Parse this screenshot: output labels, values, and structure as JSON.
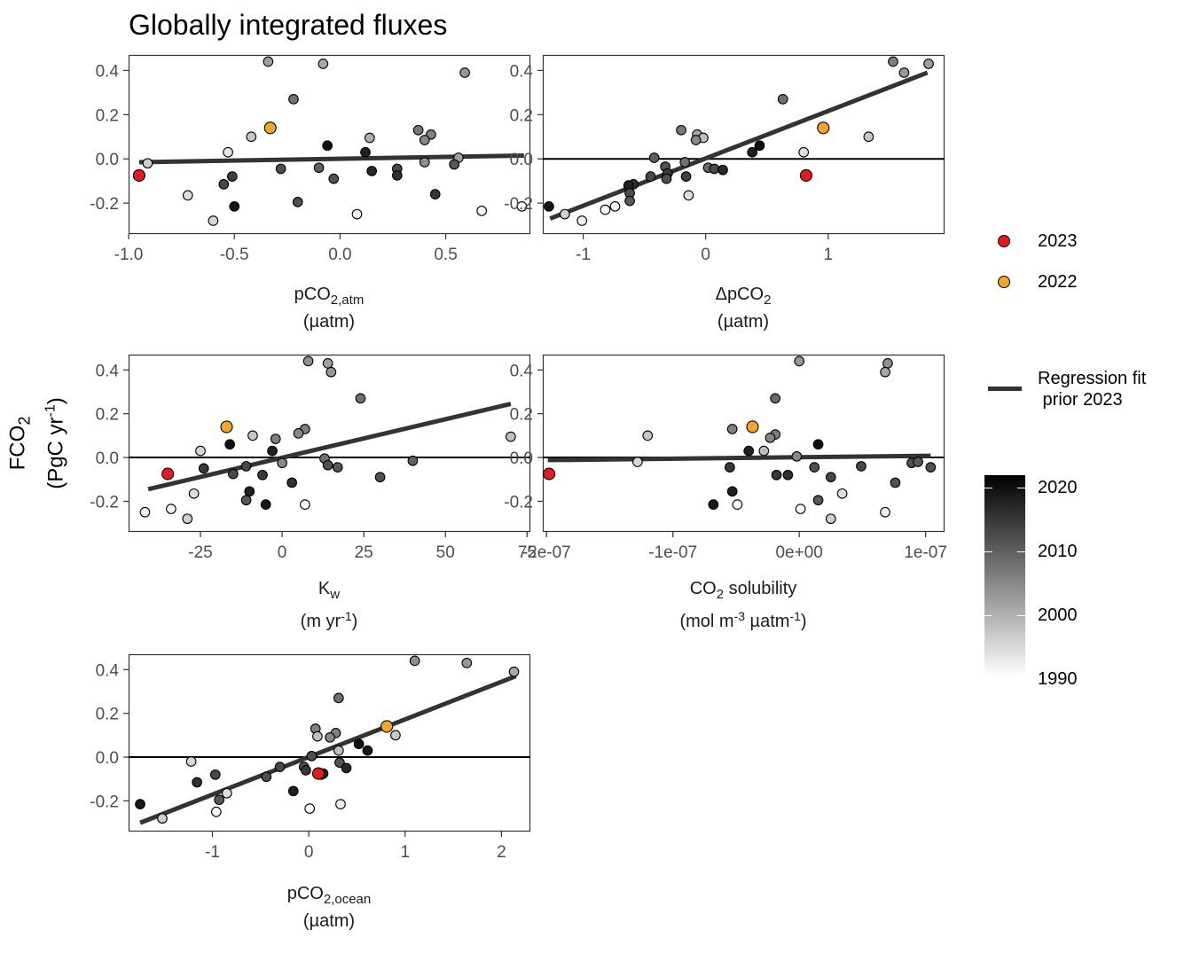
{
  "title": "Globally integrated fluxes",
  "y_axis": {
    "label_main": "FCO",
    "label_main_sub": "2",
    "label_unit_a": "(PgC yr",
    "label_unit_sup": "-1",
    "label_unit_b": ")"
  },
  "panels": [
    {
      "id": "p1",
      "x_label_main": "pCO",
      "x_label_sub": "2,atm",
      "x_label_unit": "(µatm)",
      "xlim": [
        -1.0,
        0.9
      ],
      "ylim": [
        -0.34,
        0.47
      ],
      "xticks": [
        {
          "v": -1.0,
          "t": "-1.0"
        },
        {
          "v": -0.5,
          "t": "-0.5"
        },
        {
          "v": 0.0,
          "t": "0.0"
        },
        {
          "v": 0.5,
          "t": "0.5"
        }
      ],
      "hline": false,
      "fit": {
        "x": [
          -0.95,
          0.87
        ],
        "y": [
          -0.015,
          0.015
        ]
      }
    },
    {
      "id": "p2",
      "x_label_main": "ΔpCO",
      "x_label_sub": "2",
      "x_label_unit": "(µatm)",
      "xlim": [
        -1.33,
        1.95
      ],
      "ylim": [
        -0.34,
        0.47
      ],
      "xticks": [
        {
          "v": -1,
          "t": "-1"
        },
        {
          "v": 0,
          "t": "0"
        },
        {
          "v": 1,
          "t": "1"
        }
      ],
      "hline": true,
      "fit": {
        "x": [
          -1.27,
          1.81
        ],
        "y": [
          -0.27,
          0.39
        ]
      }
    },
    {
      "id": "p3",
      "x_label_main": "K",
      "x_label_sub": "w",
      "x_label_unit": "(m yr",
      "x_label_unit_sup": "-1",
      "x_label_unit_end": ")",
      "xlim": [
        -47,
        76
      ],
      "ylim": [
        -0.34,
        0.47
      ],
      "xticks": [
        {
          "v": -25,
          "t": "-25"
        },
        {
          "v": 0,
          "t": "0"
        },
        {
          "v": 25,
          "t": "25"
        },
        {
          "v": 50,
          "t": "50"
        },
        {
          "v": 75,
          "t": "75"
        }
      ],
      "hline": true,
      "fit": {
        "x": [
          -41,
          70
        ],
        "y": [
          -0.145,
          0.245
        ]
      }
    },
    {
      "id": "p4",
      "x_label_main": "CO",
      "x_label_sub": "2",
      "x_label_main_after": " solubility",
      "x_label_unit": "(mol m",
      "x_label_unit_sup": "-3",
      "x_label_unit_mid": " µatm",
      "x_label_unit_sup2": "-1",
      "x_label_unit_end": ")",
      "xlim": [
        -2.03e-07,
        1.15e-07
      ],
      "ylim": [
        -0.34,
        0.47
      ],
      "xticks": [
        {
          "v": -2e-07,
          "t": "-2e-07"
        },
        {
          "v": -1e-07,
          "t": "-1e-07"
        },
        {
          "v": 0,
          "t": "0e+00"
        },
        {
          "v": 1e-07,
          "t": "1e-07"
        }
      ],
      "hline": true,
      "fit": {
        "x": [
          -1.99e-07,
          1.04e-07
        ],
        "y": [
          -0.012,
          0.008
        ]
      }
    },
    {
      "id": "p5",
      "x_label_main": "pCO",
      "x_label_sub": "2,ocean",
      "x_label_unit": "(µatm)",
      "xlim": [
        -1.87,
        2.3
      ],
      "ylim": [
        -0.34,
        0.47
      ],
      "xticks": [
        {
          "v": -1,
          "t": "-1"
        },
        {
          "v": 0,
          "t": "0"
        },
        {
          "v": 1,
          "t": "1"
        },
        {
          "v": 2,
          "t": "2"
        }
      ],
      "hline": true,
      "fit": {
        "x": [
          -1.75,
          2.15
        ],
        "y": [
          -0.3,
          0.37
        ]
      }
    }
  ],
  "y_ticks": [
    {
      "v": 0.4,
      "t": "0.4"
    },
    {
      "v": 0.2,
      "t": "0.2"
    },
    {
      "v": 0.0,
      "t": "0.0"
    },
    {
      "v": -0.2,
      "t": "-0.2"
    }
  ],
  "chart_data": [
    {
      "type": "scatter",
      "title": "Globally integrated fluxes",
      "xlabel": "pCO2,atm (µatm)",
      "ylabel": "FCO2 (PgC yr-1)",
      "points": [
        {
          "year": 2023,
          "x": -0.95,
          "y": -0.075
        },
        {
          "year": 2022,
          "x": -0.33,
          "y": 0.14
        },
        {
          "year": 2002,
          "x": -0.34,
          "y": 0.44
        },
        {
          "year": 2001,
          "x": -0.08,
          "y": 0.43
        },
        {
          "year": 2003,
          "x": 0.59,
          "y": 0.39
        },
        {
          "year": 2008,
          "x": -0.22,
          "y": 0.27
        },
        {
          "year": 2007,
          "x": 0.37,
          "y": 0.13
        },
        {
          "year": 2006,
          "x": 0.43,
          "y": 0.11
        },
        {
          "year": 1997,
          "x": -0.42,
          "y": 0.1
        },
        {
          "year": 2000,
          "x": 0.14,
          "y": 0.095
        },
        {
          "year": 2005,
          "x": 0.4,
          "y": 0.085
        },
        {
          "year": 2020,
          "x": -0.06,
          "y": 0.06
        },
        {
          "year": 1993,
          "x": -0.53,
          "y": 0.03
        },
        {
          "year": 2018,
          "x": 0.12,
          "y": 0.03
        },
        {
          "year": 2002,
          "x": 0.56,
          "y": 0.005
        },
        {
          "year": 1996,
          "x": -0.91,
          "y": -0.02
        },
        {
          "year": 2004,
          "x": 0.4,
          "y": -0.015
        },
        {
          "year": 2011,
          "x": 0.54,
          "y": -0.025
        },
        {
          "year": 2012,
          "x": -0.28,
          "y": -0.045
        },
        {
          "year": 2010,
          "x": -0.1,
          "y": -0.04
        },
        {
          "year": 2013,
          "x": 0.27,
          "y": -0.045
        },
        {
          "year": 2017,
          "x": 0.15,
          "y": -0.055
        },
        {
          "year": 2016,
          "x": 0.27,
          "y": -0.075
        },
        {
          "year": 2014,
          "x": -0.51,
          "y": -0.08
        },
        {
          "year": 2012,
          "x": -0.03,
          "y": -0.09
        },
        {
          "year": 2013,
          "x": -0.55,
          "y": -0.115
        },
        {
          "year": 2015,
          "x": 0.45,
          "y": -0.16
        },
        {
          "year": 1994,
          "x": -0.72,
          "y": -0.165
        },
        {
          "year": 2012,
          "x": -0.2,
          "y": -0.195
        },
        {
          "year": 2019,
          "x": -0.5,
          "y": -0.215
        },
        {
          "year": 1990,
          "x": 0.86,
          "y": -0.215
        },
        {
          "year": 1991,
          "x": 0.67,
          "y": -0.235
        },
        {
          "year": 1992,
          "x": 0.08,
          "y": -0.25
        },
        {
          "year": 1995,
          "x": -0.6,
          "y": -0.28
        }
      ]
    },
    {
      "type": "scatter",
      "xlabel": "ΔpCO2 (µatm)",
      "ylabel": "FCO2 (PgC yr-1)",
      "points": [
        {
          "year": 2023,
          "x": 0.82,
          "y": -0.075
        },
        {
          "year": 2022,
          "x": 0.96,
          "y": 0.14
        },
        {
          "year": 2006,
          "x": 1.53,
          "y": 0.44
        },
        {
          "year": 2002,
          "x": 1.82,
          "y": 0.43
        },
        {
          "year": 2003,
          "x": 1.62,
          "y": 0.39
        },
        {
          "year": 2008,
          "x": 0.63,
          "y": 0.27
        },
        {
          "year": 1997,
          "x": 1.33,
          "y": 0.1
        },
        {
          "year": 2007,
          "x": -0.2,
          "y": 0.13
        },
        {
          "year": 2001,
          "x": -0.07,
          "y": 0.11
        },
        {
          "year": 1998,
          "x": -0.02,
          "y": 0.095
        },
        {
          "year": 2005,
          "x": -0.08,
          "y": 0.085
        },
        {
          "year": 2020,
          "x": 0.44,
          "y": 0.06
        },
        {
          "year": 2018,
          "x": 0.38,
          "y": 0.03
        },
        {
          "year": 1994,
          "x": 0.8,
          "y": 0.03
        },
        {
          "year": 2010,
          "x": -0.42,
          "y": 0.005
        },
        {
          "year": 2008,
          "x": -0.17,
          "y": -0.015
        },
        {
          "year": 2012,
          "x": -0.33,
          "y": -0.035
        },
        {
          "year": 2009,
          "x": 0.02,
          "y": -0.04
        },
        {
          "year": 2013,
          "x": 0.07,
          "y": -0.045
        },
        {
          "year": 2017,
          "x": 0.14,
          "y": -0.05
        },
        {
          "year": 2015,
          "x": -0.31,
          "y": -0.065
        },
        {
          "year": 2013,
          "x": -0.45,
          "y": -0.08
        },
        {
          "year": 2014,
          "x": -0.16,
          "y": -0.08
        },
        {
          "year": 2012,
          "x": -0.32,
          "y": -0.09
        },
        {
          "year": 2016,
          "x": -0.59,
          "y": -0.115
        },
        {
          "year": 2018,
          "x": -0.63,
          "y": -0.12
        },
        {
          "year": 2012,
          "x": -0.62,
          "y": -0.155
        },
        {
          "year": 1994,
          "x": -0.14,
          "y": -0.165
        },
        {
          "year": 2011,
          "x": -0.62,
          "y": -0.19
        },
        {
          "year": 2019,
          "x": -1.28,
          "y": -0.215
        },
        {
          "year": 1991,
          "x": -0.74,
          "y": -0.215
        },
        {
          "year": 1990,
          "x": -0.82,
          "y": -0.23
        },
        {
          "year": 1996,
          "x": -1.15,
          "y": -0.25
        },
        {
          "year": 1992,
          "x": -1.01,
          "y": -0.28
        }
      ]
    },
    {
      "type": "scatter",
      "xlabel": "Kw (m yr-1)",
      "ylabel": "FCO2 (PgC yr-1)",
      "points": [
        {
          "year": 2023,
          "x": -35,
          "y": -0.075
        },
        {
          "year": 2022,
          "x": -17,
          "y": 0.14
        },
        {
          "year": 2004,
          "x": 8,
          "y": 0.44
        },
        {
          "year": 2002,
          "x": 14,
          "y": 0.43
        },
        {
          "year": 2003,
          "x": 15,
          "y": 0.39
        },
        {
          "year": 2008,
          "x": 24,
          "y": 0.27
        },
        {
          "year": 1997,
          "x": -9,
          "y": 0.1
        },
        {
          "year": 2006,
          "x": 7,
          "y": 0.13
        },
        {
          "year": 2005,
          "x": 5,
          "y": 0.11
        },
        {
          "year": 1998,
          "x": 70,
          "y": 0.095
        },
        {
          "year": 2006,
          "x": -2,
          "y": 0.085
        },
        {
          "year": 2020,
          "x": -16,
          "y": 0.06
        },
        {
          "year": 2018,
          "x": -3,
          "y": 0.03
        },
        {
          "year": 1995,
          "x": -25,
          "y": 0.03
        },
        {
          "year": 2010,
          "x": 40,
          "y": -0.015
        },
        {
          "year": 2008,
          "x": 13,
          "y": -0.005
        },
        {
          "year": 2005,
          "x": 0,
          "y": -0.025
        },
        {
          "year": 2013,
          "x": -11,
          "y": -0.04
        },
        {
          "year": 2012,
          "x": 14,
          "y": -0.035
        },
        {
          "year": 2011,
          "x": 17,
          "y": -0.045
        },
        {
          "year": 2015,
          "x": -24,
          "y": -0.05
        },
        {
          "year": 2013,
          "x": -15,
          "y": -0.075
        },
        {
          "year": 2015,
          "x": -6,
          "y": -0.08
        },
        {
          "year": 2012,
          "x": 30,
          "y": -0.09
        },
        {
          "year": 2016,
          "x": 3,
          "y": -0.115
        },
        {
          "year": 2018,
          "x": -10,
          "y": -0.155
        },
        {
          "year": 1994,
          "x": -27,
          "y": -0.165
        },
        {
          "year": 2011,
          "x": -11,
          "y": -0.195
        },
        {
          "year": 2019,
          "x": -5,
          "y": -0.215
        },
        {
          "year": 1990,
          "x": 7,
          "y": -0.215
        },
        {
          "year": 1991,
          "x": -34,
          "y": -0.235
        },
        {
          "year": 1992,
          "x": -42,
          "y": -0.25
        },
        {
          "year": 1996,
          "x": -29,
          "y": -0.28
        }
      ]
    },
    {
      "type": "scatter",
      "xlabel": "CO2 solubility (mol m-3 µatm-1)",
      "ylabel": "FCO2 (PgC yr-1)",
      "points": [
        {
          "year": 2023,
          "x": -1.98e-07,
          "y": -0.075
        },
        {
          "year": 2022,
          "x": -3.7e-08,
          "y": 0.14
        },
        {
          "year": 2003,
          "x": 0,
          "y": 0.44
        },
        {
          "year": 2004,
          "x": 7e-08,
          "y": 0.43
        },
        {
          "year": 2001,
          "x": 6.8e-08,
          "y": 0.39
        },
        {
          "year": 2009,
          "x": -1.9e-08,
          "y": 0.27
        },
        {
          "year": 1997,
          "x": -1.2e-07,
          "y": 0.1
        },
        {
          "year": 2006,
          "x": -5.3e-08,
          "y": 0.13
        },
        {
          "year": 2006,
          "x": -1.9e-08,
          "y": 0.105
        },
        {
          "year": 2005,
          "x": -2.3e-08,
          "y": 0.09
        },
        {
          "year": 2020,
          "x": 1.5e-08,
          "y": 0.06
        },
        {
          "year": 2018,
          "x": -4e-08,
          "y": 0.03
        },
        {
          "year": 1998,
          "x": -2.8e-08,
          "y": 0.03
        },
        {
          "year": 2005,
          "x": -2e-09,
          "y": 0.005
        },
        {
          "year": 1995,
          "x": -1.28e-07,
          "y": -0.02
        },
        {
          "year": 2012,
          "x": 8.9e-08,
          "y": -0.025
        },
        {
          "year": 2011,
          "x": 9.4e-08,
          "y": -0.02
        },
        {
          "year": 2015,
          "x": -5.5e-08,
          "y": -0.045
        },
        {
          "year": 2012,
          "x": 1.2e-08,
          "y": -0.045
        },
        {
          "year": 2013,
          "x": 4.9e-08,
          "y": -0.04
        },
        {
          "year": 2012,
          "x": 1.04e-07,
          "y": -0.045
        },
        {
          "year": 2015,
          "x": -1.8e-08,
          "y": -0.08
        },
        {
          "year": 2016,
          "x": -9e-09,
          "y": -0.08
        },
        {
          "year": 2013,
          "x": 2.5e-08,
          "y": -0.09
        },
        {
          "year": 2012,
          "x": 7.6e-08,
          "y": -0.115
        },
        {
          "year": 2018,
          "x": -5.3e-08,
          "y": -0.155
        },
        {
          "year": 1994,
          "x": 3.4e-08,
          "y": -0.165
        },
        {
          "year": 2011,
          "x": 1.5e-08,
          "y": -0.195
        },
        {
          "year": 2019,
          "x": -6.8e-08,
          "y": -0.215
        },
        {
          "year": 1990,
          "x": -4.9e-08,
          "y": -0.215
        },
        {
          "year": 1991,
          "x": 1e-09,
          "y": -0.235
        },
        {
          "year": 1992,
          "x": 6.8e-08,
          "y": -0.25
        },
        {
          "year": 1996,
          "x": 2.5e-08,
          "y": -0.28
        }
      ]
    },
    {
      "type": "scatter",
      "xlabel": "pCO2,ocean (µatm)",
      "ylabel": "FCO2 (PgC yr-1)",
      "points": [
        {
          "year": 2023,
          "x": 0.1,
          "y": -0.075
        },
        {
          "year": 2022,
          "x": 0.81,
          "y": 0.14
        },
        {
          "year": 2004,
          "x": 1.1,
          "y": 0.44
        },
        {
          "year": 2003,
          "x": 1.64,
          "y": 0.43
        },
        {
          "year": 2001,
          "x": 2.13,
          "y": 0.39
        },
        {
          "year": 2008,
          "x": 0.31,
          "y": 0.27
        },
        {
          "year": 1997,
          "x": 0.9,
          "y": 0.1
        },
        {
          "year": 2006,
          "x": 0.07,
          "y": 0.13
        },
        {
          "year": 2006,
          "x": 0.28,
          "y": 0.11
        },
        {
          "year": 2005,
          "x": 0.22,
          "y": 0.09
        },
        {
          "year": 1998,
          "x": 0.09,
          "y": 0.095
        },
        {
          "year": 2020,
          "x": 0.52,
          "y": 0.06
        },
        {
          "year": 2019,
          "x": 0.61,
          "y": 0.03
        },
        {
          "year": 1998,
          "x": 0.31,
          "y": 0.03
        },
        {
          "year": 2012,
          "x": 0.03,
          "y": 0.005
        },
        {
          "year": 1995,
          "x": -1.22,
          "y": -0.02
        },
        {
          "year": 2012,
          "x": 0.32,
          "y": -0.025
        },
        {
          "year": 2013,
          "x": -0.3,
          "y": -0.045
        },
        {
          "year": 2012,
          "x": -0.05,
          "y": -0.045
        },
        {
          "year": 2017,
          "x": 0.39,
          "y": -0.05
        },
        {
          "year": 2015,
          "x": -0.03,
          "y": -0.06
        },
        {
          "year": 2016,
          "x": 0.15,
          "y": -0.075
        },
        {
          "year": 2013,
          "x": -0.97,
          "y": -0.08
        },
        {
          "year": 2014,
          "x": 0.13,
          "y": -0.08
        },
        {
          "year": 2012,
          "x": -0.44,
          "y": -0.09
        },
        {
          "year": 2016,
          "x": -1.16,
          "y": -0.115
        },
        {
          "year": 2018,
          "x": -0.16,
          "y": -0.155
        },
        {
          "year": 1994,
          "x": -0.85,
          "y": -0.165
        },
        {
          "year": 2011,
          "x": -0.93,
          "y": -0.195
        },
        {
          "year": 2019,
          "x": -1.75,
          "y": -0.215
        },
        {
          "year": 1992,
          "x": 0.33,
          "y": -0.215
        },
        {
          "year": 1991,
          "x": 0.01,
          "y": -0.235
        },
        {
          "year": 1990,
          "x": -0.96,
          "y": -0.25
        },
        {
          "year": 1996,
          "x": -1.52,
          "y": -0.28
        }
      ]
    }
  ],
  "legend": {
    "highlight": [
      {
        "label": "2023",
        "color": "#e41a1c"
      },
      {
        "label": "2022",
        "color": "#f5a623"
      }
    ],
    "fit_label": "Regression fit\n prior 2023",
    "colorbar": {
      "min_year": 1990,
      "max_year": 2022,
      "labels": [
        {
          "year": 2020,
          "t": "2020"
        },
        {
          "year": 2010,
          "t": "2010"
        },
        {
          "year": 2000,
          "t": "2000"
        },
        {
          "year": 1990,
          "t": "1990"
        }
      ]
    }
  }
}
